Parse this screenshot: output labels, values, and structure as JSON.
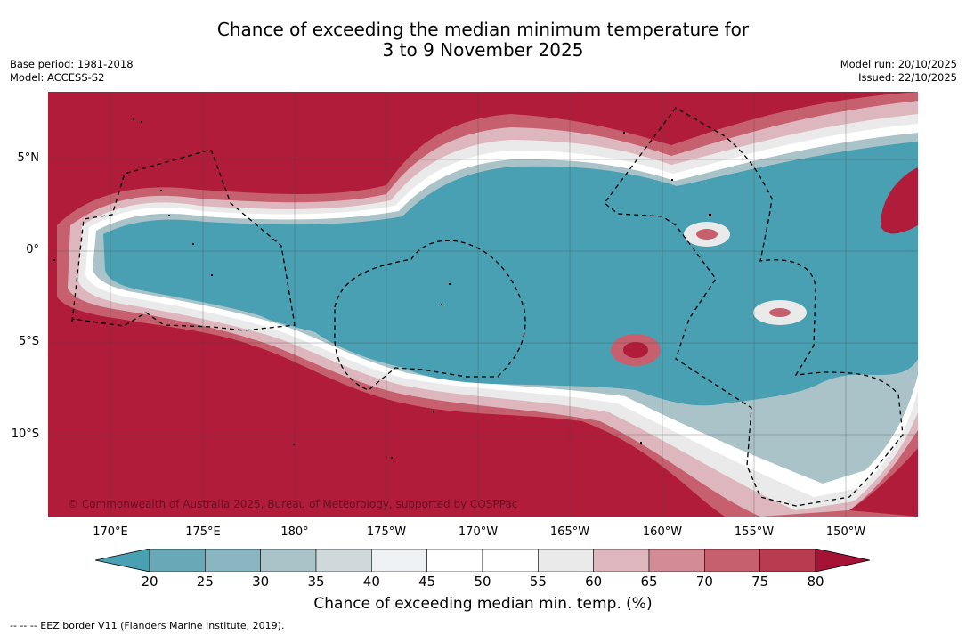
{
  "title": {
    "line1": "Chance of exceeding the median minimum temperature for",
    "line2": "3 to 9 November 2025"
  },
  "meta_left": {
    "base_period": "Base period: 1981-2018",
    "model": "Model: ACCESS-S2"
  },
  "meta_right": {
    "model_run": "Model run: 20/10/2025",
    "issued": "Issued: 22/10/2025"
  },
  "map": {
    "lat_labels": [
      "5°N",
      "0°",
      "5°S",
      "10°S"
    ],
    "lon_labels": [
      "170°E",
      "175°E",
      "180°",
      "175°W",
      "170°W",
      "165°W",
      "160°W",
      "155°W",
      "150°W"
    ],
    "copyright": "© Commonwealth of Australia 2025, Bureau of Meteorology, supported by COSPPac",
    "background_color": "#b01c3a",
    "ocean_anomaly_color": "#48a0b2"
  },
  "colorbar": {
    "ticks": [
      "20",
      "25",
      "30",
      "35",
      "40",
      "45",
      "50",
      "55",
      "60",
      "65",
      "70",
      "75",
      "80"
    ],
    "colors": [
      "#48a0b2",
      "#68a8b7",
      "#8ab6c2",
      "#aac3c8",
      "#cfd8db",
      "#edf1f3",
      "#ffffff",
      "#ffffff",
      "#eaeaea",
      "#deb6bd",
      "#d38b95",
      "#c6606f",
      "#b83b50",
      "#a51235"
    ],
    "label": "Chance of exceeding median min. temp. (%)"
  },
  "footer": {
    "eez_text": "--  --  -- EEZ border V11 (Flanders Marine Institute, 2019)."
  }
}
